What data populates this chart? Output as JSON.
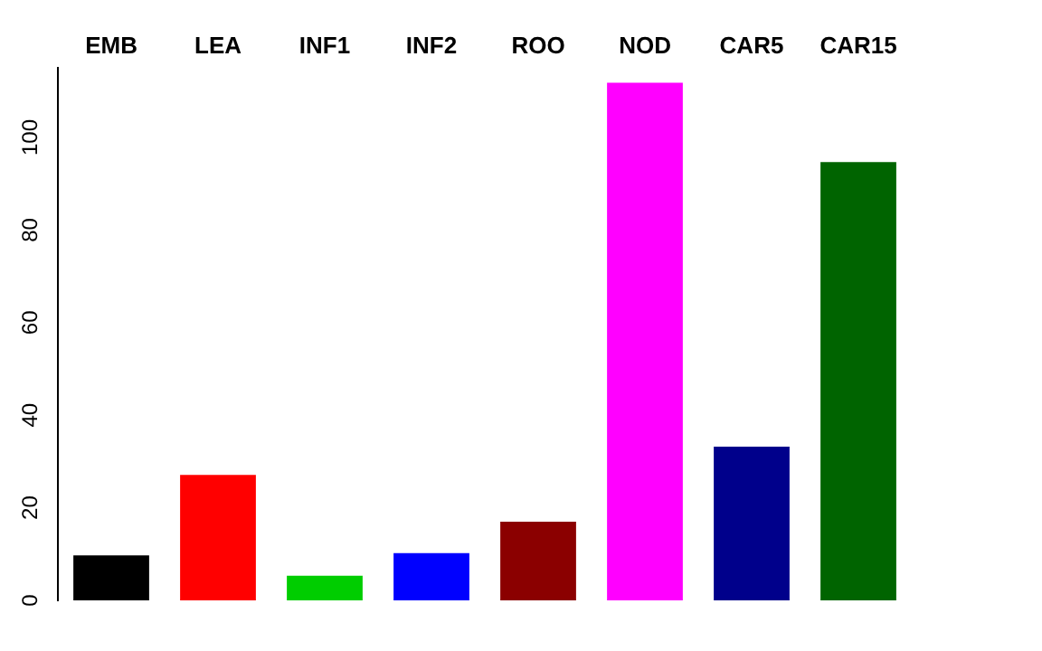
{
  "chart_data": {
    "type": "bar",
    "categories": [
      "EMB",
      "LEA",
      "INF1",
      "INF2",
      "ROO",
      "NOD",
      "CAR5",
      "CAR15"
    ],
    "values": [
      9.7,
      27.1,
      5.3,
      10.2,
      17.0,
      111.8,
      33.2,
      94.7
    ],
    "colors": [
      "#000000",
      "#ff0000",
      "#00cd00",
      "#0000ff",
      "#8b0000",
      "#ff00ff",
      "#00008b",
      "#006400"
    ],
    "ylim": [
      0,
      115
    ],
    "yticks": [
      0,
      20,
      40,
      60,
      80,
      100
    ],
    "grid": false,
    "legend": false
  }
}
